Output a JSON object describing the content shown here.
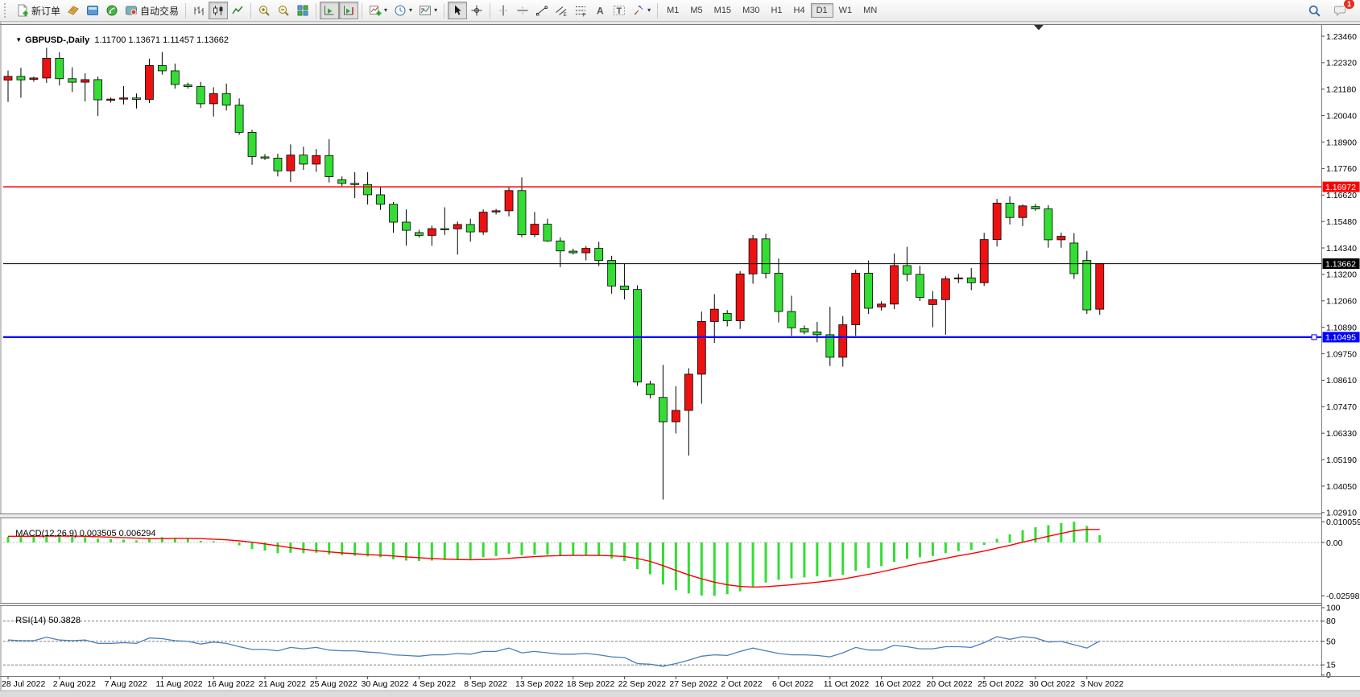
{
  "toolbar": {
    "new_order_label": "新订单",
    "autotrading_label": "自动交易",
    "timeframes": [
      "M1",
      "M5",
      "M15",
      "M30",
      "H1",
      "H4",
      "D1",
      "W1",
      "MN"
    ],
    "active_timeframe": "D1",
    "notification_count": "1",
    "icons": [
      "new-order",
      "market-depth",
      "terminal",
      "signals",
      "autotrading",
      "bar-chart",
      "candlestick-chart",
      "line-chart",
      "zoom-in",
      "zoom-out",
      "tile-windows",
      "auto-scroll",
      "chart-shift",
      "indicators",
      "periods",
      "templates",
      "cursor",
      "crosshair",
      "vertical-line",
      "horizontal-line",
      "trendline",
      "equidistant-channel",
      "fibonacci",
      "text",
      "text-label",
      "arrows",
      "search",
      "notifications"
    ]
  },
  "chart": {
    "title_symbol": "GBPUSD-,Daily",
    "title_ohlc": "1.11700 1.13671 1.11457 1.13662",
    "bull_color": "#ee1111",
    "bear_color": "#33dd33",
    "wick_color": "#000000",
    "price_axis_ticks": [
      "1.23460",
      "1.22320",
      "1.21180",
      "1.20040",
      "1.18900",
      "1.17760",
      "1.16620",
      "1.15480",
      "1.14340",
      "1.13200",
      "1.12060",
      "1.10890",
      "1.09750",
      "1.08610",
      "1.07470",
      "1.06330",
      "1.05190",
      "1.04050",
      "1.02910"
    ],
    "hlines": [
      {
        "name": "resistance-line",
        "label": "1.16972",
        "price": 1.16972,
        "color": "#ff0000"
      },
      {
        "name": "current-price-line",
        "label": "1.13662",
        "price": 1.13662,
        "color": "#000000"
      },
      {
        "name": "support-line",
        "label": "1.10495",
        "price": 1.10495,
        "color": "#0000ff"
      }
    ],
    "date_labels": [
      "28 Jul 2022",
      "2 Aug 2022",
      "7 Aug 2022",
      "11 Aug 2022",
      "16 Aug 2022",
      "21 Aug 2022",
      "25 Aug 2022",
      "30 Aug 2022",
      "4 Sep 2022",
      "8 Sep 2022",
      "13 Sep 2022",
      "18 Sep 2022",
      "22 Sep 2022",
      "27 Sep 2022",
      "2 Oct 2022",
      "6 Oct 2022",
      "11 Oct 2022",
      "16 Oct 2022",
      "20 Oct 2022",
      "25 Oct 2022",
      "30 Oct 2022",
      "3 Nov 2022"
    ],
    "candles": [
      [
        1.2157,
        1.2198,
        1.2063,
        1.2173
      ],
      [
        1.2173,
        1.221,
        1.2081,
        1.2158
      ],
      [
        1.216,
        1.2172,
        1.215,
        1.2166
      ],
      [
        1.2166,
        1.2296,
        1.2145,
        1.2251
      ],
      [
        1.2251,
        1.2277,
        1.2134,
        1.2163
      ],
      [
        1.2163,
        1.2212,
        1.2106,
        1.2148
      ],
      [
        1.2148,
        1.2186,
        1.2065,
        1.2159
      ],
      [
        1.2159,
        1.2172,
        1.2003,
        1.2072
      ],
      [
        1.207,
        1.2082,
        1.206,
        1.2075
      ],
      [
        1.2075,
        1.2131,
        1.2052,
        1.208
      ],
      [
        1.208,
        1.2099,
        1.2035,
        1.2074
      ],
      [
        1.2074,
        1.2249,
        1.2058,
        1.222
      ],
      [
        1.222,
        1.2278,
        1.2181,
        1.2197
      ],
      [
        1.2197,
        1.2228,
        1.212,
        1.2138
      ],
      [
        1.2136,
        1.2146,
        1.212,
        1.2129
      ],
      [
        1.2129,
        1.2149,
        1.2037,
        1.2055
      ],
      [
        1.2055,
        1.2126,
        1.2,
        1.2099
      ],
      [
        1.2099,
        1.2142,
        1.2026,
        1.2049
      ],
      [
        1.2049,
        1.2078,
        1.1921,
        1.1932
      ],
      [
        1.1932,
        1.1943,
        1.1792,
        1.1828
      ],
      [
        1.1826,
        1.1838,
        1.1813,
        1.1821
      ],
      [
        1.1821,
        1.184,
        1.1742,
        1.1766
      ],
      [
        1.1766,
        1.188,
        1.1718,
        1.1834
      ],
      [
        1.1834,
        1.187,
        1.177,
        1.1795
      ],
      [
        1.1795,
        1.186,
        1.1762,
        1.1832
      ],
      [
        1.1832,
        1.1902,
        1.1716,
        1.1741
      ],
      [
        1.1728,
        1.1742,
        1.17,
        1.1712
      ],
      [
        1.1712,
        1.176,
        1.1649,
        1.1707
      ],
      [
        1.1707,
        1.176,
        1.1621,
        1.1663
      ],
      [
        1.1663,
        1.1695,
        1.1598,
        1.1622
      ],
      [
        1.1622,
        1.1632,
        1.1499,
        1.1545
      ],
      [
        1.1545,
        1.16,
        1.1444,
        1.151
      ],
      [
        1.15,
        1.1512,
        1.1478,
        1.1488
      ],
      [
        1.1488,
        1.153,
        1.1443,
        1.1517
      ],
      [
        1.1517,
        1.1609,
        1.149,
        1.1516
      ],
      [
        1.1516,
        1.1548,
        1.1405,
        1.1535
      ],
      [
        1.1535,
        1.156,
        1.1461,
        1.1503
      ],
      [
        1.1503,
        1.16,
        1.149,
        1.1588
      ],
      [
        1.1589,
        1.1602,
        1.1578,
        1.1594
      ],
      [
        1.1594,
        1.1699,
        1.157,
        1.1681
      ],
      [
        1.1681,
        1.1738,
        1.148,
        1.1491
      ],
      [
        1.1491,
        1.1589,
        1.148,
        1.1536
      ],
      [
        1.1536,
        1.156,
        1.146,
        1.1464
      ],
      [
        1.1464,
        1.1479,
        1.1351,
        1.1421
      ],
      [
        1.142,
        1.1431,
        1.1406,
        1.1413
      ],
      [
        1.1413,
        1.1442,
        1.138,
        1.1432
      ],
      [
        1.1432,
        1.146,
        1.1356,
        1.138
      ],
      [
        1.138,
        1.14,
        1.1237,
        1.127
      ],
      [
        1.127,
        1.1365,
        1.1212,
        1.1255
      ],
      [
        1.1255,
        1.1273,
        1.084,
        1.0856
      ],
      [
        1.0848,
        1.0862,
        1.0786,
        1.0802
      ],
      [
        1.079,
        1.093,
        1.035,
        1.0685
      ],
      [
        1.0685,
        1.0838,
        1.0635,
        1.0734
      ],
      [
        1.0734,
        1.0916,
        1.0539,
        1.089
      ],
      [
        1.089,
        1.116,
        1.0763,
        1.1117
      ],
      [
        1.1117,
        1.1235,
        1.1025,
        1.117
      ],
      [
        1.1152,
        1.1166,
        1.1096,
        1.112
      ],
      [
        1.112,
        1.1334,
        1.1085,
        1.1322
      ],
      [
        1.1322,
        1.149,
        1.128,
        1.1473
      ],
      [
        1.1473,
        1.1495,
        1.1302,
        1.1325
      ],
      [
        1.1325,
        1.1388,
        1.1113,
        1.116
      ],
      [
        1.116,
        1.1228,
        1.1055,
        1.109
      ],
      [
        1.1086,
        1.11,
        1.1062,
        1.1072
      ],
      [
        1.1072,
        1.1115,
        1.1027,
        1.106
      ],
      [
        1.106,
        1.118,
        1.0925,
        1.0963
      ],
      [
        1.0963,
        1.114,
        1.0923,
        1.1103
      ],
      [
        1.1103,
        1.134,
        1.1055,
        1.1325
      ],
      [
        1.1325,
        1.138,
        1.115,
        1.1174
      ],
      [
        1.118,
        1.1204,
        1.1164,
        1.1192
      ],
      [
        1.1192,
        1.141,
        1.117,
        1.1358
      ],
      [
        1.1358,
        1.1439,
        1.129,
        1.132
      ],
      [
        1.132,
        1.1357,
        1.1205,
        1.1221
      ],
      [
        1.119,
        1.1248,
        1.1092,
        1.1211
      ],
      [
        1.1211,
        1.1312,
        1.106,
        1.1301
      ],
      [
        1.1301,
        1.1322,
        1.1282,
        1.1305
      ],
      [
        1.1305,
        1.1347,
        1.1252,
        1.1284
      ],
      [
        1.1284,
        1.1499,
        1.127,
        1.147
      ],
      [
        1.147,
        1.1645,
        1.144,
        1.1627
      ],
      [
        1.1627,
        1.1656,
        1.1535,
        1.1565
      ],
      [
        1.1565,
        1.1621,
        1.1528,
        1.1615
      ],
      [
        1.1612,
        1.1624,
        1.1594,
        1.1602
      ],
      [
        1.1602,
        1.1618,
        1.1435,
        1.1469
      ],
      [
        1.1469,
        1.15,
        1.1435,
        1.1484
      ],
      [
        1.1455,
        1.1498,
        1.13,
        1.1323
      ],
      [
        1.138,
        1.1421,
        1.115,
        1.1167
      ],
      [
        1.117,
        1.13671,
        1.11457,
        1.13662
      ]
    ]
  },
  "macd": {
    "name": "MACD(12,26,9)",
    "values": "0.003505 0.006294",
    "axis_labels": [
      "0.010059",
      "0.00",
      "-0.025987"
    ],
    "histogram_color": "#33dd33",
    "signal_color": "#ff0000",
    "histogram": [
      0.0028,
      0.003,
      0.0029,
      0.0035,
      0.0033,
      0.0028,
      0.0026,
      0.0018,
      0.0016,
      0.0014,
      0.001,
      0.0022,
      0.0026,
      0.0022,
      0.0018,
      0.0008,
      0.0006,
      0.0,
      -0.0014,
      -0.0032,
      -0.004,
      -0.0052,
      -0.005,
      -0.0052,
      -0.005,
      -0.0058,
      -0.0062,
      -0.0065,
      -0.0068,
      -0.0072,
      -0.0082,
      -0.0088,
      -0.009,
      -0.0088,
      -0.0085,
      -0.0082,
      -0.008,
      -0.0072,
      -0.0066,
      -0.0055,
      -0.0062,
      -0.006,
      -0.006,
      -0.0065,
      -0.0065,
      -0.0062,
      -0.0065,
      -0.0078,
      -0.009,
      -0.013,
      -0.0155,
      -0.0205,
      -0.0232,
      -0.0248,
      -0.0258,
      -0.025987,
      -0.0252,
      -0.0238,
      -0.0215,
      -0.0195,
      -0.0182,
      -0.0175,
      -0.017,
      -0.0165,
      -0.0168,
      -0.0158,
      -0.0138,
      -0.0125,
      -0.0115,
      -0.0095,
      -0.008,
      -0.0072,
      -0.0066,
      -0.0052,
      -0.0042,
      -0.0036,
      -0.0012,
      0.0018,
      0.004,
      0.006,
      0.0074,
      0.0084,
      0.0094,
      0.010059,
      0.008,
      0.003505
    ],
    "signal": [
      0.003,
      0.003,
      0.003,
      0.0031,
      0.0031,
      0.0031,
      0.003,
      0.0028,
      0.0026,
      0.0024,
      0.0021,
      0.0019,
      0.0019,
      0.002,
      0.002,
      0.0019,
      0.0016,
      0.0013,
      0.0008,
      0.0001,
      -0.0007,
      -0.0016,
      -0.0025,
      -0.0033,
      -0.004,
      -0.0046,
      -0.0051,
      -0.0055,
      -0.0059,
      -0.0062,
      -0.0066,
      -0.007,
      -0.0074,
      -0.0078,
      -0.0081,
      -0.0083,
      -0.0084,
      -0.0083,
      -0.0081,
      -0.0077,
      -0.0073,
      -0.0069,
      -0.0066,
      -0.0064,
      -0.0063,
      -0.0063,
      -0.0063,
      -0.0065,
      -0.0068,
      -0.0078,
      -0.0092,
      -0.0113,
      -0.0136,
      -0.0158,
      -0.0177,
      -0.0193,
      -0.0206,
      -0.0214,
      -0.0217,
      -0.0215,
      -0.0211,
      -0.0206,
      -0.02,
      -0.0193,
      -0.0186,
      -0.0178,
      -0.0167,
      -0.0155,
      -0.0143,
      -0.0129,
      -0.0115,
      -0.0102,
      -0.009,
      -0.0077,
      -0.0065,
      -0.0054,
      -0.0042,
      -0.0028,
      -0.0014,
      0.0001,
      0.0016,
      0.003,
      0.0044,
      0.0057,
      0.0064,
      0.006294
    ]
  },
  "rsi": {
    "name": "RSI(14)",
    "value": "50.3828",
    "levels": [
      "100",
      "80",
      "50",
      "15",
      "0"
    ],
    "line_color": "#4a7ebb",
    "values": [
      52,
      51,
      51,
      56,
      52,
      51,
      52,
      47,
      47,
      48,
      47,
      55,
      54,
      51,
      50,
      46,
      49,
      47,
      42,
      38,
      38,
      36,
      41,
      39,
      41,
      37,
      36,
      36,
      34,
      33,
      30,
      29,
      28,
      30,
      30,
      32,
      31,
      35,
      35,
      40,
      33,
      35,
      33,
      31,
      31,
      32,
      30,
      27,
      26,
      17,
      16,
      13,
      17,
      22,
      28,
      30,
      29,
      35,
      40,
      36,
      32,
      30,
      30,
      29,
      27,
      33,
      41,
      37,
      37,
      44,
      42,
      39,
      39,
      42,
      42,
      41,
      48,
      57,
      53,
      57,
      55,
      49,
      50,
      45,
      40,
      50.38
    ]
  }
}
